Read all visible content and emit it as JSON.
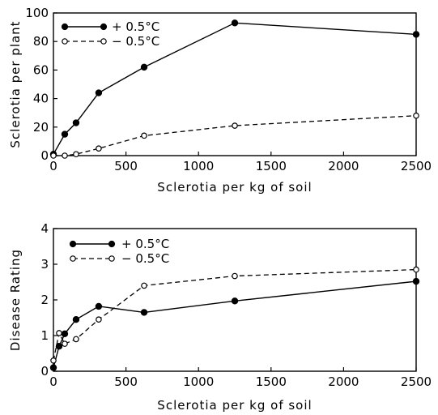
{
  "chart_data": [
    {
      "type": "line",
      "xlabel": "Sclerotia per kg of soil",
      "ylabel": "Sclerotia per plant",
      "xlim": [
        0,
        2500
      ],
      "ylim": [
        0,
        100
      ],
      "xticks": [
        0,
        500,
        1000,
        1500,
        2000,
        2500
      ],
      "yticks": [
        0,
        20,
        40,
        60,
        80,
        100
      ],
      "legend_position": "top-left",
      "grid": false,
      "series": [
        {
          "name": "+ 0.5°C",
          "marker": "filled-circle",
          "line": "solid",
          "x": [
            0,
            78,
            156,
            312,
            625,
            1250,
            2500
          ],
          "y": [
            1,
            15,
            23,
            44,
            62,
            93,
            85
          ]
        },
        {
          "name": "− 0.5°C",
          "marker": "open-circle",
          "line": "dashed",
          "x": [
            0,
            78,
            156,
            312,
            625,
            1250,
            2500
          ],
          "y": [
            0,
            0,
            1,
            5,
            14,
            21,
            28
          ]
        }
      ]
    },
    {
      "type": "line",
      "xlabel": "Sclerotia per kg of soil",
      "ylabel": "Disease Rating",
      "xlim": [
        0,
        2500
      ],
      "ylim": [
        0,
        4
      ],
      "xticks": [
        0,
        500,
        1000,
        1500,
        2000,
        2500
      ],
      "yticks": [
        0,
        1,
        2,
        3,
        4
      ],
      "legend_position": "top-left",
      "grid": false,
      "series": [
        {
          "name": "+ 0.5°C",
          "marker": "filled-circle",
          "line": "solid",
          "x": [
            0,
            39,
            78,
            156,
            312,
            625,
            1250,
            2500
          ],
          "y": [
            0.1,
            0.7,
            1.05,
            1.45,
            1.82,
            1.65,
            1.97,
            2.52
          ]
        },
        {
          "name": "− 0.5°C",
          "marker": "open-circle",
          "line": "dashed",
          "x": [
            0,
            39,
            78,
            156,
            312,
            625,
            1250,
            2500
          ],
          "y": [
            0.3,
            1.07,
            0.77,
            0.9,
            1.45,
            2.4,
            2.67,
            2.85
          ]
        }
      ]
    }
  ]
}
